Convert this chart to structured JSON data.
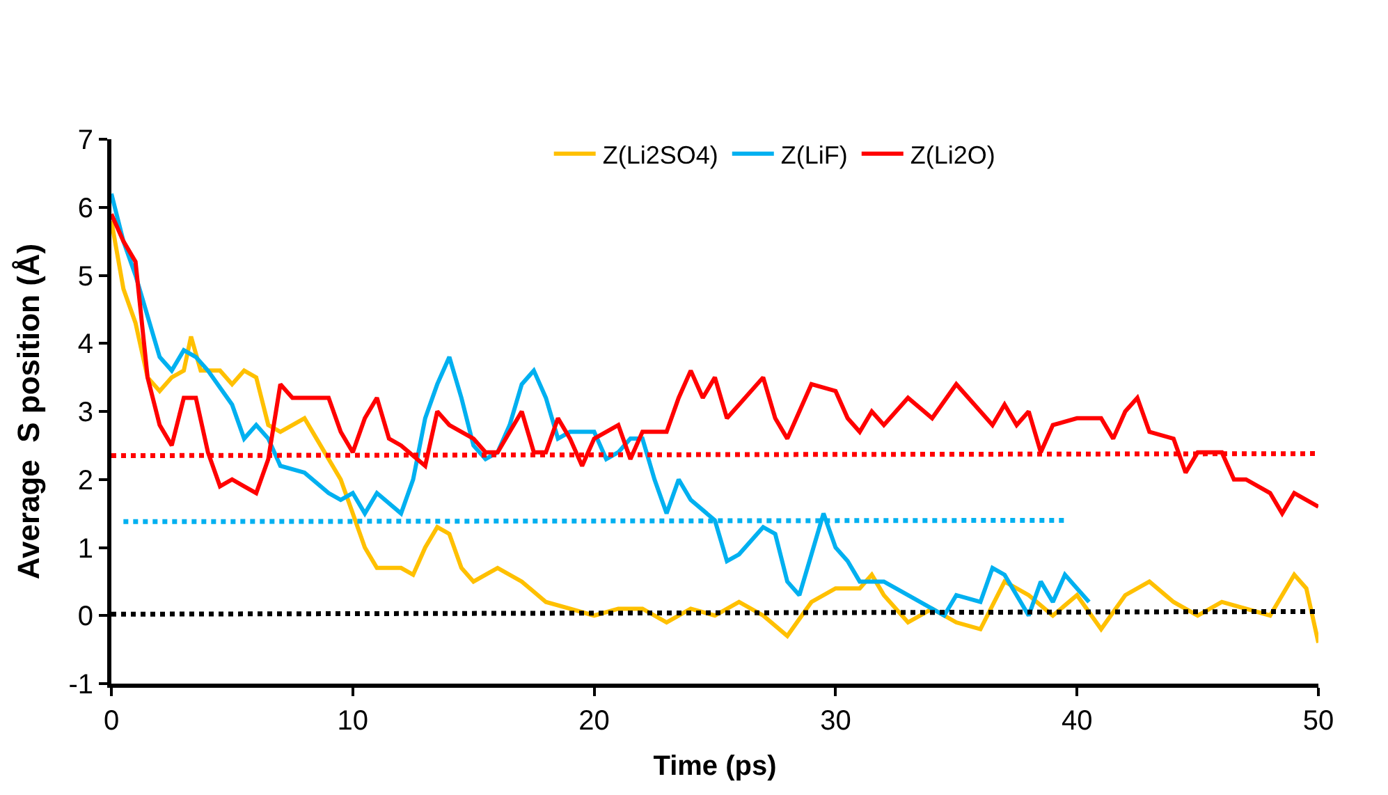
{
  "chart_data": {
    "type": "line",
    "xlabel": "Time (ps)",
    "ylabel": "Average  S position (Å)",
    "xlim": [
      0,
      50
    ],
    "ylim": [
      -1,
      7
    ],
    "xticks": [
      0,
      10,
      20,
      30,
      40,
      50
    ],
    "yticks": [
      -1,
      0,
      1,
      2,
      3,
      4,
      5,
      6,
      7
    ],
    "legend": "top",
    "marker": "none",
    "line_style": "solid",
    "series": [
      {
        "name": "Z(Li2SO4)",
        "color": "#ffc000",
        "x": [
          0,
          0.5,
          1,
          1.5,
          2,
          2.5,
          3,
          3.3,
          3.7,
          4.5,
          5,
          5.5,
          6,
          6.5,
          7,
          7.5,
          8,
          8.5,
          9,
          9.5,
          10,
          10.5,
          11,
          12,
          12.5,
          13,
          13.5,
          14,
          14.5,
          15,
          15.5,
          16,
          17,
          18,
          19,
          20,
          21,
          22,
          23,
          24,
          25,
          26,
          27,
          28,
          29,
          30,
          31,
          31.5,
          32,
          33,
          34,
          35,
          36,
          37,
          38,
          39,
          40,
          41,
          42,
          43,
          44,
          45,
          46,
          47,
          48,
          49,
          49.5,
          50
        ],
        "values": [
          5.8,
          4.8,
          4.3,
          3.5,
          3.3,
          3.5,
          3.6,
          4.1,
          3.6,
          3.6,
          3.4,
          3.6,
          3.5,
          2.8,
          2.7,
          2.8,
          2.9,
          2.6,
          2.3,
          2.0,
          1.5,
          1.0,
          0.7,
          0.7,
          0.6,
          1.0,
          1.3,
          1.2,
          0.7,
          0.5,
          0.6,
          0.7,
          0.5,
          0.2,
          0.1,
          0.0,
          0.1,
          0.1,
          -0.1,
          0.1,
          0.0,
          0.2,
          0.0,
          -0.3,
          0.2,
          0.4,
          0.4,
          0.6,
          0.3,
          -0.1,
          0.1,
          -0.1,
          -0.2,
          0.5,
          0.3,
          0.0,
          0.3,
          -0.2,
          0.3,
          0.5,
          0.2,
          0.0,
          0.2,
          0.1,
          0.0,
          0.6,
          0.4,
          -0.4
        ]
      },
      {
        "name": "Z(LiF)",
        "color": "#00b0f0",
        "x": [
          0,
          0.5,
          1,
          1.5,
          2,
          2.5,
          3,
          3.5,
          4,
          5,
          5.5,
          6,
          6.5,
          7,
          8,
          9,
          9.5,
          10,
          10.5,
          11,
          12,
          12.5,
          13,
          13.5,
          14,
          14.5,
          15,
          15.5,
          16,
          16.5,
          17,
          17.5,
          18,
          18.5,
          19,
          20,
          20.5,
          21,
          21.5,
          22,
          22.5,
          23,
          23.5,
          24,
          25,
          25.5,
          26,
          27,
          27.5,
          28,
          28.5,
          29,
          29.5,
          30,
          30.5,
          31,
          32,
          33,
          34,
          34.5,
          35,
          36,
          36.5,
          37,
          38,
          38.5,
          39,
          39.5,
          40,
          40.5
        ],
        "values": [
          6.2,
          5.5,
          5.0,
          4.4,
          3.8,
          3.6,
          3.9,
          3.8,
          3.6,
          3.1,
          2.6,
          2.8,
          2.6,
          2.2,
          2.1,
          1.8,
          1.7,
          1.8,
          1.5,
          1.8,
          1.5,
          2.0,
          2.9,
          3.4,
          3.8,
          3.2,
          2.5,
          2.3,
          2.4,
          2.8,
          3.4,
          3.6,
          3.2,
          2.6,
          2.7,
          2.7,
          2.3,
          2.4,
          2.6,
          2.6,
          2.0,
          1.5,
          2.0,
          1.7,
          1.4,
          0.8,
          0.9,
          1.3,
          1.2,
          0.5,
          0.3,
          0.9,
          1.5,
          1.0,
          0.8,
          0.5,
          0.5,
          0.3,
          0.1,
          0.0,
          0.3,
          0.2,
          0.7,
          0.6,
          0.0,
          0.5,
          0.2,
          0.6,
          0.4,
          0.2
        ]
      },
      {
        "name": "Z(Li2O)",
        "color": "#ff0000",
        "x": [
          0,
          0.5,
          1,
          1.5,
          2,
          2.5,
          3,
          3.5,
          4,
          4.5,
          5,
          5.5,
          6,
          6.5,
          7,
          7.5,
          8,
          9,
          9.5,
          10,
          10.5,
          11,
          11.5,
          12,
          13,
          13.5,
          14,
          15,
          15.5,
          16,
          17,
          17.5,
          18,
          18.5,
          19,
          19.5,
          20,
          21,
          21.5,
          22,
          23,
          23.5,
          24,
          24.5,
          25,
          25.5,
          26,
          27,
          27.5,
          28,
          28.5,
          29,
          30,
          30.5,
          31,
          31.5,
          32,
          32.5,
          33,
          34,
          35,
          36,
          36.5,
          37,
          37.5,
          38,
          38.5,
          39,
          40,
          41,
          41.5,
          42,
          42.5,
          43,
          44,
          44.5,
          45,
          46,
          46.5,
          47,
          48,
          48.5,
          49,
          49.5,
          50
        ],
        "values": [
          5.9,
          5.5,
          5.2,
          3.5,
          2.8,
          2.5,
          3.2,
          3.2,
          2.4,
          1.9,
          2.0,
          1.9,
          1.8,
          2.3,
          3.4,
          3.2,
          3.2,
          3.2,
          2.7,
          2.4,
          2.9,
          3.2,
          2.6,
          2.5,
          2.2,
          3.0,
          2.8,
          2.6,
          2.4,
          2.4,
          3.0,
          2.4,
          2.4,
          2.9,
          2.6,
          2.2,
          2.6,
          2.8,
          2.3,
          2.7,
          2.7,
          3.2,
          3.6,
          3.2,
          3.5,
          2.9,
          3.1,
          3.5,
          2.9,
          2.6,
          3.0,
          3.4,
          3.3,
          2.9,
          2.7,
          3.0,
          2.8,
          3.0,
          3.2,
          2.9,
          3.4,
          3.0,
          2.8,
          3.1,
          2.8,
          3.0,
          2.4,
          2.8,
          2.9,
          2.9,
          2.6,
          3.0,
          3.2,
          2.7,
          2.6,
          2.1,
          2.4,
          2.4,
          2.0,
          2.0,
          1.8,
          1.5,
          1.8,
          1.7,
          1.6
        ]
      },
      {
        "color": "#ff0000",
        "line_style": "dotted",
        "x": [
          0,
          50
        ],
        "values": [
          2.35,
          2.38
        ]
      },
      {
        "color": "#00b0f0",
        "line_style": "dotted",
        "x": [
          0.5,
          39.5
        ],
        "values": [
          1.38,
          1.4
        ]
      },
      {
        "color": "#000000",
        "line_style": "dotted",
        "x": [
          0,
          50
        ],
        "values": [
          0.02,
          0.06
        ]
      }
    ]
  }
}
